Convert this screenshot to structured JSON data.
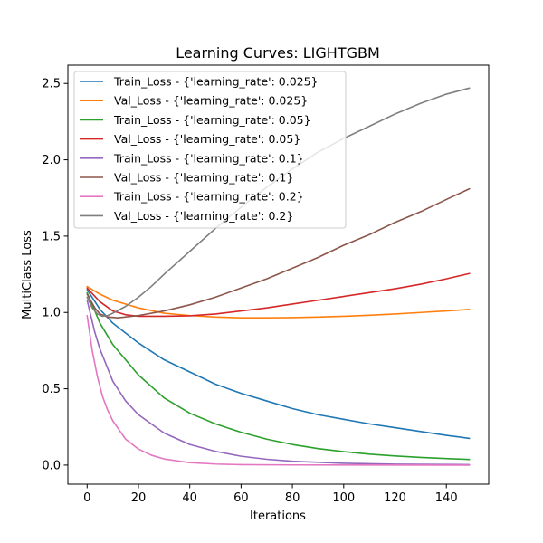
{
  "chart_data": {
    "type": "line",
    "title": "Learning Curves: LIGHTGBM",
    "xlabel": "Iterations",
    "ylabel": "MultiClass Loss",
    "xlim": [
      -7.5,
      156.5
    ],
    "ylim": [
      -0.125,
      2.62
    ],
    "xticks": [
      0,
      20,
      40,
      60,
      80,
      100,
      120,
      140
    ],
    "xtick_labels": [
      "0",
      "20",
      "40",
      "60",
      "80",
      "100",
      "120",
      "140"
    ],
    "yticks": [
      0.0,
      0.5,
      1.0,
      1.5,
      2.0,
      2.5
    ],
    "ytick_labels": [
      "0.0",
      "0.5",
      "1.0",
      "1.5",
      "2.0",
      "2.5"
    ],
    "grid": false,
    "legend_position": "top-left",
    "series": [
      {
        "name": "Train_Loss - {'learning_rate': 0.025}",
        "color": "#1f77b4",
        "x": [
          0,
          5,
          10,
          20,
          30,
          40,
          50,
          60,
          70,
          80,
          90,
          100,
          110,
          120,
          130,
          140,
          149
        ],
        "y": [
          1.15,
          1.02,
          0.93,
          0.8,
          0.69,
          0.61,
          0.53,
          0.47,
          0.42,
          0.37,
          0.33,
          0.3,
          0.27,
          0.245,
          0.22,
          0.195,
          0.175
        ]
      },
      {
        "name": "Val_Loss - {'learning_rate': 0.025}",
        "color": "#ff7f0e",
        "x": [
          0,
          5,
          10,
          20,
          30,
          40,
          50,
          60,
          70,
          80,
          90,
          100,
          110,
          120,
          130,
          140,
          149
        ],
        "y": [
          1.17,
          1.12,
          1.08,
          1.03,
          0.995,
          0.98,
          0.97,
          0.965,
          0.965,
          0.966,
          0.97,
          0.975,
          0.982,
          0.99,
          1.0,
          1.01,
          1.02
        ]
      },
      {
        "name": "Train_Loss - {'learning_rate': 0.05}",
        "color": "#2ca02c",
        "x": [
          0,
          5,
          10,
          20,
          30,
          40,
          50,
          60,
          70,
          80,
          90,
          100,
          110,
          120,
          130,
          140,
          149
        ],
        "y": [
          1.13,
          0.93,
          0.79,
          0.59,
          0.44,
          0.34,
          0.27,
          0.215,
          0.17,
          0.135,
          0.108,
          0.088,
          0.072,
          0.06,
          0.05,
          0.043,
          0.037
        ]
      },
      {
        "name": "Val_Loss - {'learning_rate': 0.05}",
        "color": "#d62728",
        "x": [
          0,
          5,
          10,
          15,
          20,
          30,
          40,
          50,
          60,
          70,
          80,
          90,
          100,
          110,
          120,
          130,
          140,
          149
        ],
        "y": [
          1.16,
          1.07,
          1.01,
          0.985,
          0.975,
          0.975,
          0.978,
          0.99,
          1.01,
          1.03,
          1.055,
          1.08,
          1.105,
          1.13,
          1.155,
          1.185,
          1.22,
          1.255
        ]
      },
      {
        "name": "Train_Loss - {'learning_rate': 0.1}",
        "color": "#9467bd",
        "x": [
          0,
          3,
          5,
          10,
          15,
          20,
          30,
          40,
          50,
          60,
          70,
          80,
          100,
          120,
          149
        ],
        "y": [
          1.08,
          0.87,
          0.76,
          0.55,
          0.42,
          0.33,
          0.21,
          0.135,
          0.09,
          0.058,
          0.038,
          0.025,
          0.012,
          0.006,
          0.003
        ]
      },
      {
        "name": "Val_Loss - {'learning_rate': 0.1}",
        "color": "#8c564b",
        "x": [
          0,
          3,
          5,
          8,
          12,
          20,
          30,
          40,
          50,
          60,
          70,
          80,
          90,
          100,
          110,
          120,
          130,
          140,
          149
        ],
        "y": [
          1.12,
          1.03,
          0.99,
          0.97,
          0.965,
          0.98,
          1.01,
          1.05,
          1.1,
          1.16,
          1.22,
          1.29,
          1.36,
          1.44,
          1.51,
          1.59,
          1.66,
          1.74,
          1.81
        ]
      },
      {
        "name": "Train_Loss - {'learning_rate': 0.2}",
        "color": "#e377c2",
        "x": [
          0,
          2,
          4,
          6,
          8,
          10,
          15,
          20,
          25,
          30,
          40,
          50,
          60,
          80,
          100,
          149
        ],
        "y": [
          0.98,
          0.75,
          0.58,
          0.45,
          0.36,
          0.29,
          0.17,
          0.105,
          0.065,
          0.04,
          0.016,
          0.007,
          0.003,
          0.001,
          0.0005,
          0.0
        ]
      },
      {
        "name": "Val_Loss - {'learning_rate': 0.2}",
        "color": "#7f7f7f",
        "x": [
          0,
          2,
          4,
          6,
          8,
          10,
          15,
          20,
          25,
          30,
          40,
          50,
          60,
          70,
          80,
          90,
          100,
          110,
          120,
          130,
          140,
          149
        ],
        "y": [
          1.1,
          1.03,
          0.99,
          0.975,
          0.98,
          0.995,
          1.04,
          1.1,
          1.17,
          1.25,
          1.4,
          1.55,
          1.69,
          1.82,
          1.94,
          2.05,
          2.14,
          2.22,
          2.3,
          2.37,
          2.43,
          2.47
        ]
      }
    ]
  }
}
